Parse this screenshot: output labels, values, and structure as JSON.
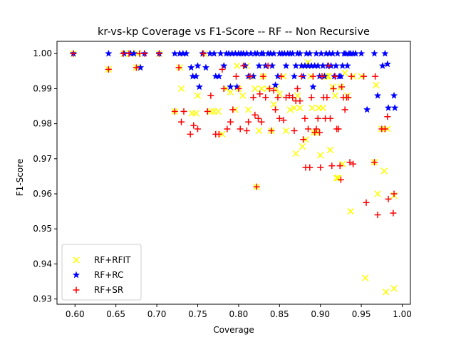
{
  "chart_data": {
    "type": "scatter",
    "title": "kr-vs-kp Coverage vs F1-Score -- RF -- Non Recursive",
    "xlabel": "Coverage",
    "ylabel": "F1-Score",
    "xlim": [
      0.578,
      1.01
    ],
    "ylim": [
      0.9285,
      1.0035
    ],
    "xticks": [
      "0.60",
      "0.65",
      "0.70",
      "0.75",
      "0.80",
      "0.85",
      "0.90",
      "0.95",
      "1.00"
    ],
    "yticks": [
      "0.93",
      "0.94",
      "0.95",
      "0.96",
      "0.97",
      "0.98",
      "0.99",
      "1.00"
    ],
    "grid": false,
    "legend": "lower-left",
    "series": [
      {
        "name": "RF+RFIT",
        "marker": "x",
        "color": "#ffff00",
        "points": [
          [
            0.598,
            1.0
          ],
          [
            0.641,
            0.9955
          ],
          [
            0.66,
            1.0
          ],
          [
            0.668,
            1.0
          ],
          [
            0.675,
            0.996
          ],
          [
            0.677,
            1.0
          ],
          [
            0.703,
            1.0
          ],
          [
            0.722,
            0.9835
          ],
          [
            0.728,
            0.996
          ],
          [
            0.73,
            0.99
          ],
          [
            0.743,
            0.983
          ],
          [
            0.748,
            0.983
          ],
          [
            0.75,
            0.988
          ],
          [
            0.758,
            1.0
          ],
          [
            0.766,
            0.9835
          ],
          [
            0.77,
            0.9835
          ],
          [
            0.775,
            0.9835
          ],
          [
            0.78,
            0.977
          ],
          [
            0.785,
            0.99
          ],
          [
            0.79,
            0.989
          ],
          [
            0.796,
            0.984
          ],
          [
            0.798,
            0.9965
          ],
          [
            0.8,
            0.99
          ],
          [
            0.805,
            0.988
          ],
          [
            0.81,
            0.9965
          ],
          [
            0.812,
            0.984
          ],
          [
            0.815,
            0.9935
          ],
          [
            0.82,
            0.99
          ],
          [
            0.822,
            0.962
          ],
          [
            0.825,
            0.978
          ],
          [
            0.828,
            0.99
          ],
          [
            0.83,
            0.9935
          ],
          [
            0.835,
            0.99
          ],
          [
            0.84,
            0.978
          ],
          [
            0.843,
            0.9855
          ],
          [
            0.846,
            0.99
          ],
          [
            0.85,
            0.9885
          ],
          [
            0.855,
            0.9935
          ],
          [
            0.858,
            0.978
          ],
          [
            0.863,
            0.984
          ],
          [
            0.868,
            0.9845
          ],
          [
            0.87,
            0.9715
          ],
          [
            0.872,
            0.988
          ],
          [
            0.875,
            0.9845
          ],
          [
            0.878,
            0.9735
          ],
          [
            0.88,
            0.9965
          ],
          [
            0.882,
            0.9755
          ],
          [
            0.885,
            0.9975
          ],
          [
            0.888,
            0.9935
          ],
          [
            0.89,
            0.9845
          ],
          [
            0.892,
            0.9775
          ],
          [
            0.895,
            0.9775
          ],
          [
            0.898,
            0.9845
          ],
          [
            0.9,
            0.971
          ],
          [
            0.903,
            0.9845
          ],
          [
            0.905,
            0.9935
          ],
          [
            0.908,
            0.9935
          ],
          [
            0.91,
            0.9935
          ],
          [
            0.912,
            0.9725
          ],
          [
            0.915,
            0.9905
          ],
          [
            0.918,
            0.988
          ],
          [
            0.92,
            0.9645
          ],
          [
            0.922,
            0.9645
          ],
          [
            0.925,
            0.9905
          ],
          [
            0.927,
            0.9685
          ],
          [
            0.93,
            0.9945
          ],
          [
            0.933,
            0.988
          ],
          [
            0.937,
            0.955
          ],
          [
            0.94,
            0.9935
          ],
          [
            0.95,
            0.9935
          ],
          [
            0.955,
            0.936
          ],
          [
            0.966,
            0.969
          ],
          [
            0.968,
            0.991
          ],
          [
            0.97,
            0.96
          ],
          [
            0.975,
            0.9785
          ],
          [
            0.978,
            0.9665
          ],
          [
            0.98,
            0.932
          ],
          [
            0.982,
            0.9785
          ],
          [
            0.99,
            0.933
          ],
          [
            0.99,
            0.9595
          ]
        ]
      },
      {
        "name": "RF+RC",
        "marker": "star",
        "color": "#0000ff",
        "points": [
          [
            0.598,
            1.0
          ],
          [
            0.641,
            1.0
          ],
          [
            0.66,
            1.0
          ],
          [
            0.668,
            1.0
          ],
          [
            0.672,
            1.0
          ],
          [
            0.68,
            0.996
          ],
          [
            0.685,
            1.0
          ],
          [
            0.703,
            1.0
          ],
          [
            0.722,
            1.0
          ],
          [
            0.728,
            1.0
          ],
          [
            0.732,
            1.0
          ],
          [
            0.736,
            1.0
          ],
          [
            0.742,
            0.996
          ],
          [
            0.744,
            0.9935
          ],
          [
            0.748,
            0.9935
          ],
          [
            0.75,
            0.9965
          ],
          [
            0.752,
            0.9905
          ],
          [
            0.756,
            1.0
          ],
          [
            0.76,
            0.996
          ],
          [
            0.765,
            1.0
          ],
          [
            0.77,
            1.0
          ],
          [
            0.772,
            0.9935
          ],
          [
            0.776,
            0.9935
          ],
          [
            0.778,
            1.0
          ],
          [
            0.782,
            0.9965
          ],
          [
            0.785,
            1.0
          ],
          [
            0.788,
            1.0
          ],
          [
            0.79,
            0.9905
          ],
          [
            0.792,
            1.0
          ],
          [
            0.796,
            1.0
          ],
          [
            0.798,
            0.9905
          ],
          [
            0.8,
            1.0
          ],
          [
            0.803,
            1.0
          ],
          [
            0.806,
            1.0
          ],
          [
            0.808,
            0.9965
          ],
          [
            0.81,
            1.0
          ],
          [
            0.812,
            0.9935
          ],
          [
            0.815,
            1.0
          ],
          [
            0.818,
            0.9935
          ],
          [
            0.82,
            1.0
          ],
          [
            0.823,
            1.0
          ],
          [
            0.825,
            0.9965
          ],
          [
            0.828,
            1.0
          ],
          [
            0.83,
            1.0
          ],
          [
            0.833,
            0.9965
          ],
          [
            0.836,
            1.0
          ],
          [
            0.839,
            1.0
          ],
          [
            0.841,
            0.9965
          ],
          [
            0.843,
            1.0
          ],
          [
            0.845,
            0.991
          ],
          [
            0.848,
            0.9935
          ],
          [
            0.85,
            1.0
          ],
          [
            0.853,
            1.0
          ],
          [
            0.856,
            1.0
          ],
          [
            0.858,
            0.9965
          ],
          [
            0.86,
            1.0
          ],
          [
            0.863,
            1.0
          ],
          [
            0.866,
            1.0
          ],
          [
            0.868,
            0.9935
          ],
          [
            0.87,
            0.9965
          ],
          [
            0.872,
            1.0
          ],
          [
            0.875,
            1.0
          ],
          [
            0.877,
            0.9965
          ],
          [
            0.879,
            0.9935
          ],
          [
            0.881,
            0.9965
          ],
          [
            0.883,
            1.0
          ],
          [
            0.885,
            0.9965
          ],
          [
            0.887,
            1.0
          ],
          [
            0.889,
            0.9965
          ],
          [
            0.891,
            0.9905
          ],
          [
            0.893,
            0.9965
          ],
          [
            0.895,
            1.0
          ],
          [
            0.897,
            0.9965
          ],
          [
            0.899,
            0.9935
          ],
          [
            0.901,
            1.0
          ],
          [
            0.903,
            0.9965
          ],
          [
            0.905,
            0.9935
          ],
          [
            0.907,
            1.0
          ],
          [
            0.909,
            0.9965
          ],
          [
            0.911,
            1.0
          ],
          [
            0.913,
            0.9965
          ],
          [
            0.915,
            1.0
          ],
          [
            0.917,
            0.9935
          ],
          [
            0.919,
            0.9965
          ],
          [
            0.921,
            1.0
          ],
          [
            0.923,
            0.9935
          ],
          [
            0.925,
            0.9935
          ],
          [
            0.927,
            0.9965
          ],
          [
            0.929,
            1.0
          ],
          [
            0.931,
            1.0
          ],
          [
            0.933,
            0.9965
          ],
          [
            0.935,
            1.0
          ],
          [
            0.937,
            1.0
          ],
          [
            0.94,
            1.0
          ],
          [
            0.943,
            1.0
          ],
          [
            0.95,
            1.0
          ],
          [
            0.957,
            0.984
          ],
          [
            0.966,
            1.0
          ],
          [
            0.97,
            0.988
          ],
          [
            0.976,
            0.9965
          ],
          [
            0.979,
            1.0
          ],
          [
            0.982,
            0.997
          ],
          [
            0.983,
            0.9845
          ],
          [
            0.99,
            0.988
          ],
          [
            0.991,
            0.9845
          ]
        ]
      },
      {
        "name": "RF+SR",
        "marker": "plus",
        "color": "#ff0000",
        "points": [
          [
            0.598,
            1.0
          ],
          [
            0.641,
            0.9955
          ],
          [
            0.659,
            1.0
          ],
          [
            0.666,
            1.0
          ],
          [
            0.675,
            0.996
          ],
          [
            0.679,
            1.0
          ],
          [
            0.685,
            1.0
          ],
          [
            0.703,
            1.0
          ],
          [
            0.722,
            0.9835
          ],
          [
            0.727,
            0.996
          ],
          [
            0.73,
            0.9805
          ],
          [
            0.733,
            0.9835
          ],
          [
            0.741,
            0.977
          ],
          [
            0.745,
            0.9795
          ],
          [
            0.75,
            0.9785
          ],
          [
            0.757,
            1.0
          ],
          [
            0.762,
            0.9835
          ],
          [
            0.766,
            0.988
          ],
          [
            0.772,
            0.977
          ],
          [
            0.776,
            0.977
          ],
          [
            0.78,
            0.9955
          ],
          [
            0.782,
            0.99
          ],
          [
            0.786,
            0.9785
          ],
          [
            0.79,
            0.9805
          ],
          [
            0.793,
            0.984
          ],
          [
            0.797,
            0.9935
          ],
          [
            0.8,
            0.99
          ],
          [
            0.802,
            0.9785
          ],
          [
            0.806,
            0.9965
          ],
          [
            0.81,
            0.978
          ],
          [
            0.812,
            0.9805
          ],
          [
            0.814,
            0.9935
          ],
          [
            0.818,
            0.9875
          ],
          [
            0.82,
            0.9825
          ],
          [
            0.822,
            0.962
          ],
          [
            0.824,
            0.9815
          ],
          [
            0.826,
            0.9885
          ],
          [
            0.828,
            0.9805
          ],
          [
            0.83,
            0.9935
          ],
          [
            0.833,
            0.9875
          ],
          [
            0.836,
            0.9965
          ],
          [
            0.838,
            0.99
          ],
          [
            0.84,
            0.978
          ],
          [
            0.843,
            0.9895
          ],
          [
            0.845,
            0.984
          ],
          [
            0.848,
            0.9875
          ],
          [
            0.85,
            0.9815
          ],
          [
            0.852,
            0.9935
          ],
          [
            0.855,
            0.981
          ],
          [
            0.858,
            0.9875
          ],
          [
            0.862,
            0.988
          ],
          [
            0.866,
            0.9875
          ],
          [
            0.868,
            0.978
          ],
          [
            0.87,
            0.9865
          ],
          [
            0.872,
            0.99
          ],
          [
            0.875,
            0.9865
          ],
          [
            0.877,
            0.9935
          ],
          [
            0.879,
            0.9755
          ],
          [
            0.881,
            0.9815
          ],
          [
            0.882,
            0.9675
          ],
          [
            0.885,
            0.9785
          ],
          [
            0.887,
            0.9675
          ],
          [
            0.889,
            0.9875
          ],
          [
            0.891,
            0.9935
          ],
          [
            0.893,
            0.9775
          ],
          [
            0.895,
            0.9785
          ],
          [
            0.897,
            0.9815
          ],
          [
            0.899,
            0.9775
          ],
          [
            0.9,
            0.9675
          ],
          [
            0.902,
            0.9935
          ],
          [
            0.904,
            0.9875
          ],
          [
            0.906,
            0.9815
          ],
          [
            0.908,
            0.9875
          ],
          [
            0.91,
            0.9965
          ],
          [
            0.912,
            0.9815
          ],
          [
            0.914,
            0.968
          ],
          [
            0.916,
            0.99
          ],
          [
            0.918,
            0.9935
          ],
          [
            0.92,
            0.9785
          ],
          [
            0.922,
            0.9785
          ],
          [
            0.924,
            0.968
          ],
          [
            0.925,
            0.964
          ],
          [
            0.926,
            0.9905
          ],
          [
            0.928,
            0.9875
          ],
          [
            0.93,
            0.984
          ],
          [
            0.932,
            0.9875
          ],
          [
            0.934,
            0.9875
          ],
          [
            0.936,
            0.969
          ],
          [
            0.938,
            0.9935
          ],
          [
            0.94,
            0.9685
          ],
          [
            0.953,
            0.9935
          ],
          [
            0.956,
            0.9575
          ],
          [
            0.966,
            0.969
          ],
          [
            0.967,
            0.9935
          ],
          [
            0.97,
            0.954
          ],
          [
            0.975,
            0.9785
          ],
          [
            0.979,
            0.9785
          ],
          [
            0.982,
            0.982
          ],
          [
            0.983,
            0.9585
          ],
          [
            0.989,
            0.9545
          ],
          [
            0.99,
            0.96
          ]
        ]
      }
    ]
  }
}
